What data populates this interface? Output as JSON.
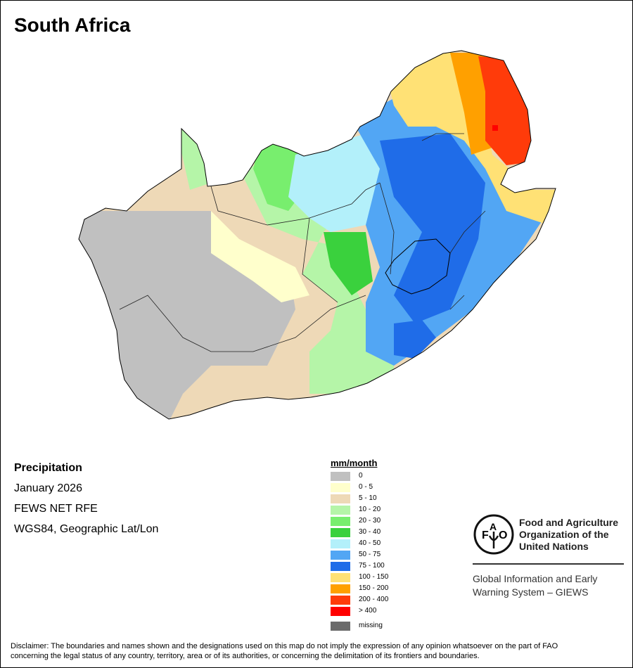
{
  "title": "South Africa",
  "info": {
    "variable": "Precipitation",
    "period": "January 2026",
    "source": "FEWS NET RFE",
    "projection": "WGS84, Geographic Lat/Lon"
  },
  "legend": {
    "title": "mm/month",
    "items": [
      {
        "label": "0",
        "color": "#c0c0c0"
      },
      {
        "label": "0 - 5",
        "color": "#ffffcc"
      },
      {
        "label": "5 - 10",
        "color": "#eed9b7"
      },
      {
        "label": "10 - 20",
        "color": "#b5f5a8"
      },
      {
        "label": "20 - 30",
        "color": "#78ee6e"
      },
      {
        "label": "30 - 40",
        "color": "#3ad13d"
      },
      {
        "label": "40 - 50",
        "color": "#b3f0fa"
      },
      {
        "label": "50 - 75",
        "color": "#52a6f4"
      },
      {
        "label": "75 - 100",
        "color": "#1f6ce8"
      },
      {
        "label": "100 - 150",
        "color": "#ffe175"
      },
      {
        "label": "150 - 200",
        "color": "#ffa000"
      },
      {
        "label": "200 - 400",
        "color": "#ff3b0a"
      },
      {
        "label": "> 400",
        "color": "#ff0000"
      },
      {
        "label": "missing",
        "color": "#6b6b6b"
      }
    ]
  },
  "logo": {
    "org_line1": "Food and Agriculture",
    "org_line2": "Organization of the",
    "org_line3": "United Nations",
    "emblem_text": "FAO FIAT PANIS",
    "giews_line1": "Global Information and Early",
    "giews_line2": "Warning System – GIEWS"
  },
  "disclaimer": {
    "line1": "Disclaimer: The boundaries and names shown and the designations used on this map do not imply the expression of any opinion whatsoever on the part of FAO",
    "line2": "concerning the legal status of any country, territory, area or of its authorities, or concerning the delimitation of its frontiers and boundaries."
  }
}
